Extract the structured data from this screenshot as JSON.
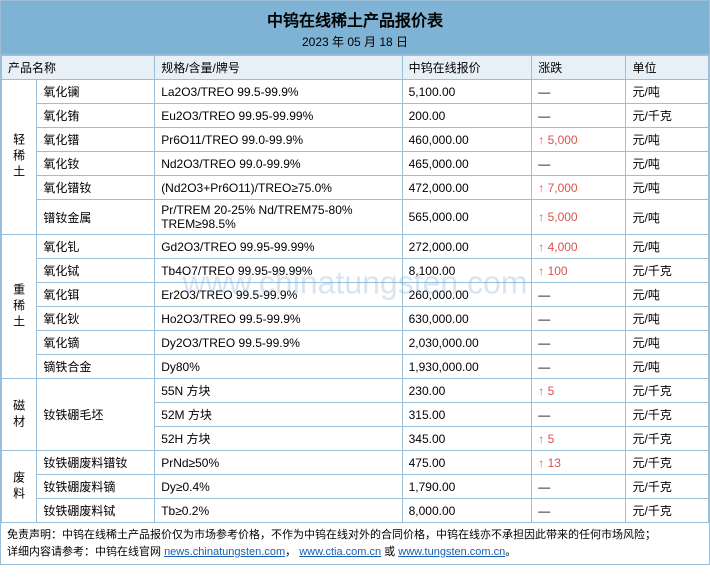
{
  "title": "中钨在线稀土产品报价表",
  "date": "2023 年 05 月 18 日",
  "headers": {
    "name": "产品名称",
    "spec": "规格/含量/牌号",
    "price": "中钨在线报价",
    "change": "涨跌",
    "unit": "单位"
  },
  "categories": [
    {
      "label": "轻稀土",
      "rows": [
        {
          "name": "氧化镧",
          "spec": "La2O3/TREO 99.5-99.9%",
          "price": "5,100.00",
          "change": "—",
          "unit": "元/吨"
        },
        {
          "name": "氧化铕",
          "spec": "Eu2O3/TREO 99.95-99.99%",
          "price": "200.00",
          "change": "—",
          "unit": "元/千克"
        },
        {
          "name": "氧化镨",
          "spec": "Pr6O11/TREO 99.0-99.9%",
          "price": "460,000.00",
          "change": "↑ 5,000",
          "unit": "元/吨"
        },
        {
          "name": "氧化钕",
          "spec": "Nd2O3/TREO 99.0-99.9%",
          "price": "465,000.00",
          "change": "—",
          "unit": "元/吨"
        },
        {
          "name": "氧化镨钕",
          "spec": "(Nd2O3+Pr6O11)/TREO≥75.0%",
          "price": "472,000.00",
          "change": "↑ 7,000",
          "unit": "元/吨"
        },
        {
          "name": "镨钕金属",
          "spec": "Pr/TREM 20-25% Nd/TREM75-80% TREM≥98.5%",
          "price": "565,000.00",
          "change": "↑ 5,000",
          "unit": "元/吨"
        }
      ]
    },
    {
      "label": "重稀土",
      "rows": [
        {
          "name": "氧化钆",
          "spec": "Gd2O3/TREO 99.95-99.99%",
          "price": "272,000.00",
          "change": "↑ 4,000",
          "unit": "元/吨"
        },
        {
          "name": "氧化铽",
          "spec": "Tb4O7/TREO 99.95-99.99%",
          "price": "8,100.00",
          "change": "↑ 100",
          "unit": "元/千克"
        },
        {
          "name": "氧化铒",
          "spec": "Er2O3/TREO 99.5-99.9%",
          "price": "260,000.00",
          "change": "—",
          "unit": "元/吨"
        },
        {
          "name": "氧化钬",
          "spec": "Ho2O3/TREO 99.5-99.9%",
          "price": "630,000.00",
          "change": "—",
          "unit": "元/吨"
        },
        {
          "name": "氧化镝",
          "spec": "Dy2O3/TREO 99.5-99.9%",
          "price": "2,030,000.00",
          "change": "—",
          "unit": "元/吨"
        },
        {
          "name": "镝铁合金",
          "spec": "Dy80%",
          "price": "1,930,000.00",
          "change": "—",
          "unit": "元/吨"
        }
      ]
    },
    {
      "label": "磁材",
      "merge": {
        "col": "name",
        "label": "钕铁硼毛坯",
        "span": 3
      },
      "rows": [
        {
          "name": "",
          "spec": "55N 方块",
          "price": "230.00",
          "change": "↑ 5",
          "unit": "元/千克"
        },
        {
          "name": "",
          "spec": "52M 方块",
          "price": "315.00",
          "change": "—",
          "unit": "元/千克"
        },
        {
          "name": "",
          "spec": "52H 方块",
          "price": "345.00",
          "change": "↑ 5",
          "unit": "元/千克"
        }
      ]
    },
    {
      "label": "废料",
      "rows": [
        {
          "name": "钕铁硼废料镨钕",
          "spec": "PrNd≥50%",
          "price": "475.00",
          "change": "↑ 13",
          "unit": "元/千克"
        },
        {
          "name": "钕铁硼废料镝",
          "spec": "Dy≥0.4%",
          "price": "1,790.00",
          "change": "—",
          "unit": "元/千克"
        },
        {
          "name": "钕铁硼废料铽",
          "spec": "Tb≥0.2%",
          "price": "8,000.00",
          "change": "—",
          "unit": "元/千克"
        }
      ]
    }
  ],
  "disclaimer": {
    "line1_prefix": "免责声明：中钨在线稀土产品报价仅为市场参考价格，不作为中钨在线对外的合同价格，中钨在线亦不承担因此带来的任何市场风险；",
    "line2_prefix": "详细内容请参考：中钨在线官网 ",
    "links": [
      "news.chinatungsten.com",
      "www.ctia.com.cn",
      "www.tungsten.com.cn"
    ],
    "sep": "，",
    "or": " 或 ",
    "end": "。"
  },
  "watermark": "www.chinatungsten.com"
}
